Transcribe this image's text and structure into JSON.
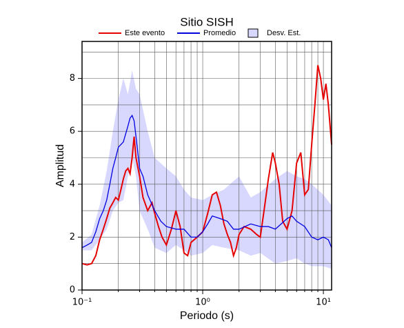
{
  "chart_data": {
    "type": "line",
    "title": "Sitio SISH",
    "xlabel": "Periodo (s)",
    "ylabel": "Amplitud",
    "xscale": "log",
    "grid": true,
    "xlim": [
      0.1,
      11.7
    ],
    "ylim": [
      0,
      9.4
    ],
    "xticks": [
      {
        "value": 0.1,
        "label": "10⁻¹"
      },
      {
        "value": 1,
        "label": "10⁰"
      },
      {
        "value": 10,
        "label": "10¹"
      }
    ],
    "xminor": [
      0.2,
      0.3,
      0.4,
      0.5,
      0.6,
      0.7,
      0.8,
      0.9,
      2,
      3,
      4,
      5,
      6,
      7,
      8,
      9
    ],
    "yticks": [
      0,
      2,
      4,
      6,
      8
    ],
    "yminor": [
      1,
      3,
      5,
      7,
      9
    ],
    "series": [
      {
        "name": "Este evento",
        "color": "#e60000",
        "x": [
          0.1,
          0.11,
          0.12,
          0.13,
          0.14,
          0.15,
          0.16,
          0.17,
          0.18,
          0.19,
          0.2,
          0.21,
          0.22,
          0.23,
          0.24,
          0.25,
          0.26,
          0.27,
          0.28,
          0.3,
          0.32,
          0.35,
          0.38,
          0.4,
          0.43,
          0.46,
          0.5,
          0.55,
          0.6,
          0.65,
          0.7,
          0.75,
          0.8,
          0.9,
          1.0,
          1.1,
          1.2,
          1.3,
          1.4,
          1.5,
          1.6,
          1.7,
          1.8,
          1.9,
          2.0,
          2.2,
          2.5,
          2.8,
          3.0,
          3.2,
          3.5,
          3.8,
          4.0,
          4.3,
          4.6,
          5.0,
          5.5,
          6.0,
          6.5,
          7.0,
          7.5,
          8.0,
          8.5,
          9.0,
          9.5,
          10,
          10.5,
          11,
          11.7
        ],
        "values": [
          1.0,
          0.95,
          1.0,
          1.3,
          1.9,
          2.3,
          2.7,
          3.1,
          3.3,
          3.5,
          3.4,
          3.8,
          4.2,
          4.5,
          4.6,
          4.4,
          5.0,
          5.8,
          5.0,
          4.3,
          3.5,
          3.0,
          3.3,
          2.9,
          2.4,
          2.0,
          1.7,
          2.3,
          3.0,
          2.4,
          1.4,
          1.3,
          1.8,
          2.0,
          2.2,
          2.9,
          3.6,
          3.7,
          3.2,
          2.5,
          2.1,
          1.8,
          1.3,
          1.6,
          2.1,
          2.4,
          2.3,
          2.1,
          2.0,
          2.9,
          4.2,
          5.2,
          4.8,
          4.0,
          2.6,
          2.3,
          3.0,
          4.8,
          5.2,
          3.6,
          3.8,
          5.5,
          7.0,
          8.5,
          8.0,
          7.2,
          7.8,
          7.0,
          5.5
        ]
      },
      {
        "name": "Promedio",
        "color": "#0000e0",
        "x": [
          0.1,
          0.11,
          0.12,
          0.13,
          0.14,
          0.15,
          0.16,
          0.17,
          0.18,
          0.19,
          0.2,
          0.22,
          0.24,
          0.25,
          0.26,
          0.27,
          0.28,
          0.3,
          0.32,
          0.35,
          0.4,
          0.45,
          0.5,
          0.6,
          0.7,
          0.8,
          0.9,
          1.0,
          1.1,
          1.2,
          1.4,
          1.6,
          1.8,
          2.0,
          2.5,
          3.0,
          3.5,
          4.0,
          5.0,
          5.5,
          6.0,
          7.0,
          8.0,
          9.0,
          10,
          11,
          11.7
        ],
        "values": [
          1.6,
          1.7,
          1.8,
          2.2,
          2.7,
          3.0,
          3.4,
          4.0,
          4.6,
          5.0,
          5.4,
          5.6,
          6.2,
          6.5,
          6.6,
          6.4,
          5.8,
          4.6,
          4.3,
          3.6,
          3.0,
          2.6,
          2.4,
          2.3,
          2.3,
          2.0,
          2.0,
          2.2,
          2.5,
          2.8,
          2.7,
          2.6,
          2.3,
          2.3,
          2.5,
          2.4,
          2.4,
          2.3,
          2.7,
          2.8,
          2.6,
          2.4,
          2.0,
          1.9,
          2.0,
          1.9,
          1.6
        ]
      },
      {
        "name": "Desv. Est.",
        "color": "#d8d8ff",
        "type": "band",
        "x": [
          0.1,
          0.12,
          0.14,
          0.16,
          0.18,
          0.2,
          0.22,
          0.24,
          0.26,
          0.28,
          0.3,
          0.35,
          0.4,
          0.5,
          0.6,
          0.7,
          0.8,
          1.0,
          1.2,
          1.5,
          2.0,
          2.5,
          3,
          4,
          5,
          6,
          7,
          8,
          10,
          11.7
        ],
        "upper": [
          1.8,
          2.1,
          3.2,
          4.5,
          6.0,
          7.2,
          8.0,
          7.4,
          8.3,
          7.6,
          7.4,
          6.0,
          5.0,
          4.6,
          4.3,
          3.8,
          3.5,
          3.4,
          3.6,
          3.8,
          4.3,
          3.5,
          3.7,
          4.2,
          4.5,
          4.3,
          4.2,
          4.0,
          3.6,
          3.2
        ],
        "lower": [
          1.5,
          1.5,
          1.9,
          2.3,
          3.0,
          3.3,
          3.4,
          4.3,
          5.0,
          4.3,
          3.0,
          2.3,
          1.6,
          1.4,
          1.7,
          1.5,
          1.3,
          1.4,
          1.7,
          1.6,
          1.5,
          1.3,
          1.4,
          1.0,
          1.1,
          1.2,
          1.0,
          0.9,
          0.9,
          0.8
        ]
      }
    ]
  }
}
